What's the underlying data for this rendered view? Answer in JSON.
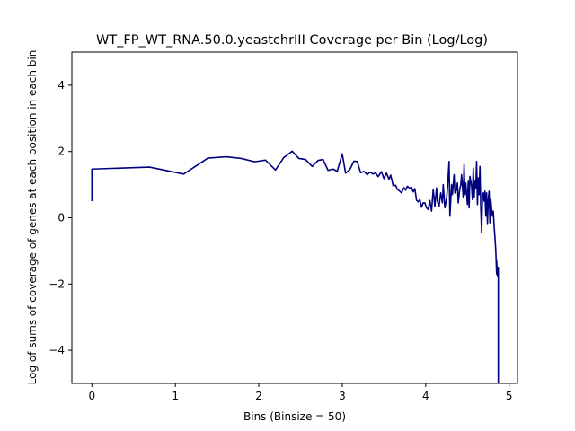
{
  "chart_data": {
    "type": "line",
    "title": "WT_FP_WT_RNA.50.0.yeastchrIII Coverage per Bin (Log/Log)",
    "xlabel": "Bins (Binsize = 50)",
    "ylabel": "Log of sums of coverage of genes at each position in each bin",
    "xlim": [
      -0.24,
      5.1
    ],
    "ylim": [
      -5,
      5
    ],
    "xticks": [
      0,
      1,
      2,
      3,
      4,
      5
    ],
    "yticks": [
      -4,
      -2,
      0,
      2,
      4
    ],
    "xtick_labels": [
      "0",
      "1",
      "2",
      "3",
      "4",
      "5"
    ],
    "ytick_labels": [
      "−4",
      "−2",
      "0",
      "2",
      "4"
    ],
    "grid": false,
    "series": [
      {
        "color": "#000080",
        "x": [
          0.0,
          0.0,
          0.69,
          1.1,
          1.39,
          1.61,
          1.79,
          1.95,
          2.08,
          2.2,
          2.3,
          2.4,
          2.48,
          2.56,
          2.64,
          2.71,
          2.77,
          2.83,
          2.89,
          2.94,
          3.0,
          3.04,
          3.09,
          3.14,
          3.18,
          3.22,
          3.26,
          3.3,
          3.33,
          3.37,
          3.4,
          3.43,
          3.47,
          3.5,
          3.53,
          3.56,
          3.58,
          3.61,
          3.64,
          3.66,
          3.69,
          3.71,
          3.74,
          3.76,
          3.78,
          3.81,
          3.83,
          3.85,
          3.87,
          3.89,
          3.91,
          3.93,
          3.95,
          3.97,
          3.99,
          4.01,
          4.03,
          4.05,
          4.07,
          4.09,
          4.11,
          4.13,
          4.14,
          4.16,
          4.18,
          4.2,
          4.21,
          4.23,
          4.25,
          4.26,
          4.28,
          4.29,
          4.31,
          4.32,
          4.34,
          4.35,
          4.37,
          4.38,
          4.39,
          4.41,
          4.42,
          4.43,
          4.45,
          4.46,
          4.47,
          4.48,
          4.5,
          4.51,
          4.52,
          4.53,
          4.55,
          4.56,
          4.57,
          4.58,
          4.59,
          4.6,
          4.61,
          4.62,
          4.63,
          4.64,
          4.65,
          4.66,
          4.67,
          4.68,
          4.69,
          4.7,
          4.71,
          4.72,
          4.73,
          4.74,
          4.75,
          4.76,
          4.77,
          4.78,
          4.79,
          4.8,
          4.81,
          4.82,
          4.83,
          4.84,
          4.85,
          4.85,
          4.86,
          4.87,
          4.87
        ],
        "y": [
          0.5,
          1.47,
          1.53,
          1.32,
          1.8,
          1.84,
          1.79,
          1.69,
          1.74,
          1.44,
          1.82,
          2.01,
          1.79,
          1.76,
          1.55,
          1.73,
          1.76,
          1.43,
          1.47,
          1.4,
          1.93,
          1.35,
          1.45,
          1.71,
          1.7,
          1.36,
          1.4,
          1.3,
          1.38,
          1.32,
          1.36,
          1.24,
          1.39,
          1.18,
          1.35,
          1.16,
          1.29,
          0.97,
          0.98,
          0.86,
          0.8,
          0.75,
          0.91,
          0.83,
          0.95,
          0.89,
          0.92,
          0.78,
          0.88,
          0.53,
          0.48,
          0.55,
          0.32,
          0.45,
          0.45,
          0.3,
          0.25,
          0.52,
          0.2,
          0.85,
          0.35,
          0.9,
          0.5,
          0.35,
          0.75,
          0.45,
          1.0,
          0.3,
          0.58,
          0.85,
          1.7,
          0.05,
          1.0,
          0.7,
          1.3,
          0.75,
          0.85,
          1.05,
          0.45,
          0.9,
          0.98,
          1.3,
          0.6,
          1.6,
          0.7,
          1.05,
          0.4,
          1.1,
          0.3,
          1.25,
          0.95,
          0.55,
          1.5,
          0.6,
          1.1,
          0.9,
          1.7,
          0.4,
          1.2,
          0.7,
          1.55,
          0.3,
          -0.45,
          0.6,
          0.75,
          0.5,
          0.8,
          0.05,
          0.75,
          -0.2,
          0.55,
          0.8,
          -0.15,
          0.55,
          0.25,
          0.05,
          0.2,
          -0.25,
          -0.6,
          -1.0,
          -1.7,
          -1.3,
          -1.75,
          -1.5,
          -5.0
        ]
      }
    ]
  }
}
